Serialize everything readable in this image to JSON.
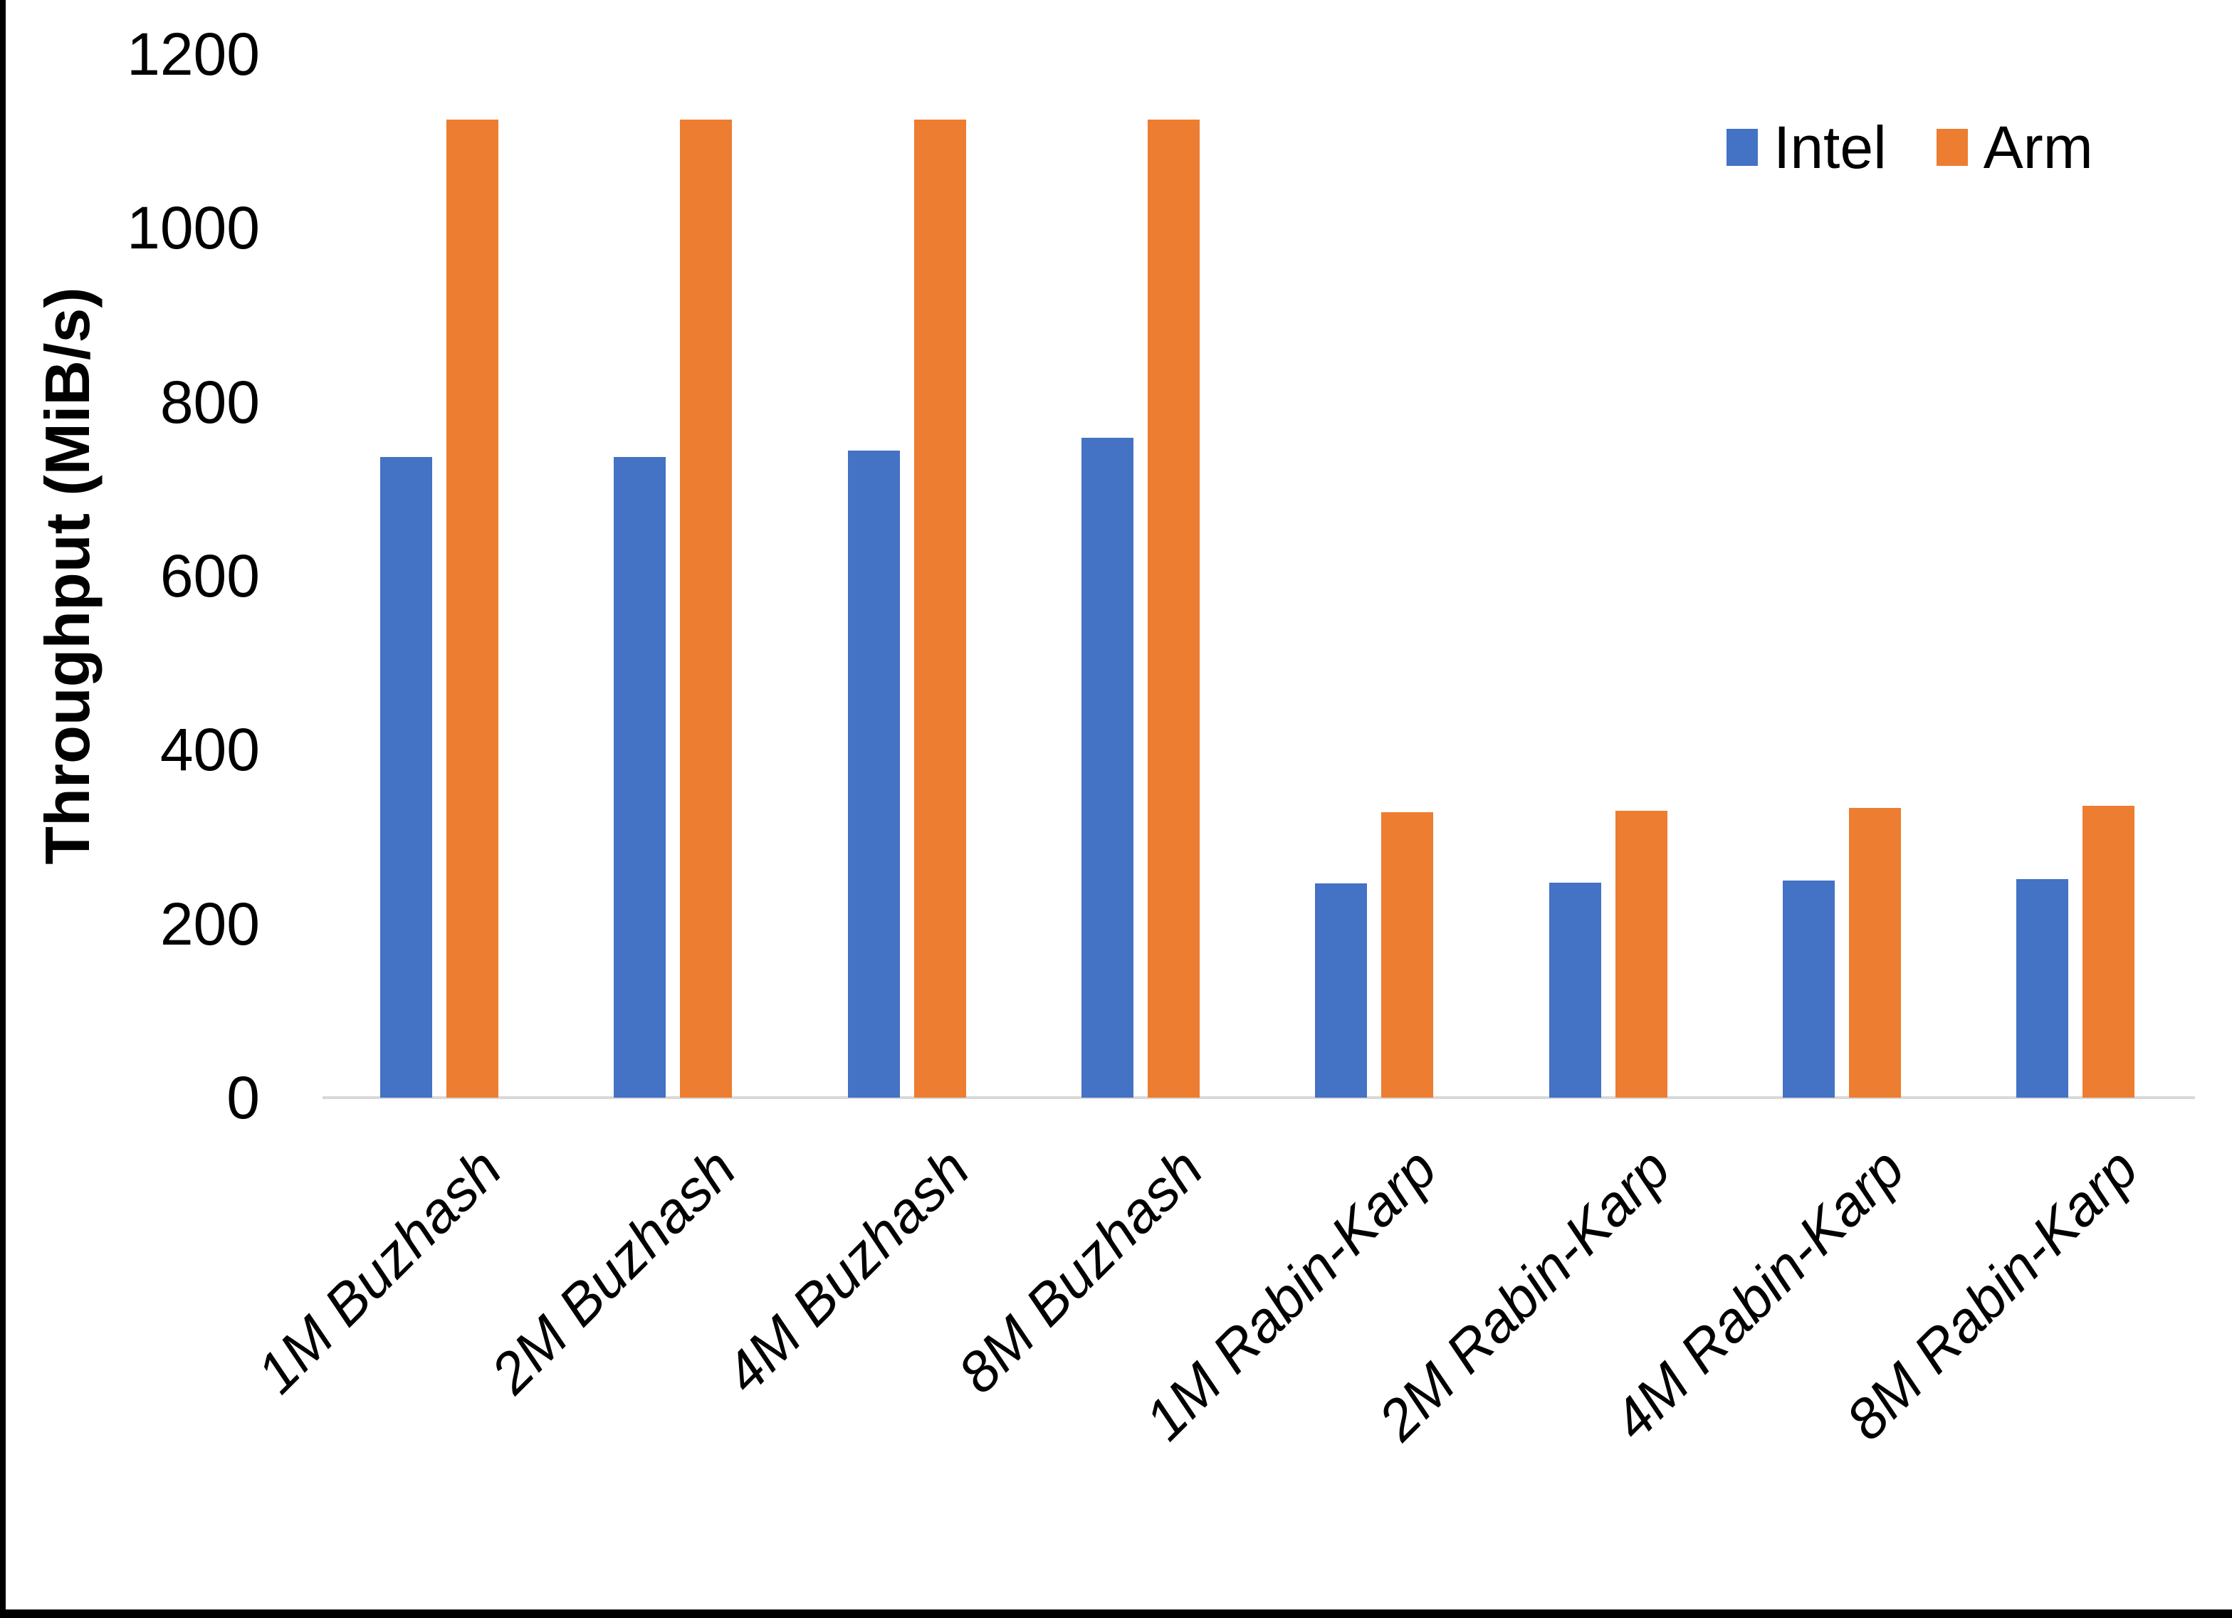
{
  "figure": {
    "background": "#FFFFFF",
    "border_color": "#000000",
    "axis_line_color": "#D9D9D9",
    "text_color": "#000000"
  },
  "legend": {
    "position": "top-right",
    "items": [
      {
        "label": "Intel",
        "color": "#4472C4"
      },
      {
        "label": "Arm",
        "color": "#ED7D31"
      }
    ]
  },
  "chart_data": {
    "type": "bar",
    "title": "",
    "xlabel": "",
    "ylabel": "Throughput (MiB/s)",
    "ylim": [
      0,
      1200
    ],
    "yticks": [
      0,
      200,
      400,
      600,
      800,
      1000,
      1200
    ],
    "grid": false,
    "legend_position": "top-right",
    "categories": [
      "1M Buzhash",
      "2M Buzhash",
      "4M Buzhash",
      "8M Buzhash",
      "1M Rabin-Karp",
      "2M Rabin-Karp",
      "4M Rabin-Karp",
      "8M Rabin-Karp"
    ],
    "series": [
      {
        "name": "Intel",
        "color": "#4472C4",
        "values": [
          737,
          737,
          744,
          759,
          246,
          247,
          250,
          251
        ]
      },
      {
        "name": "Arm",
        "color": "#ED7D31",
        "values": [
          1125,
          1125,
          1125,
          1125,
          328,
          330,
          333,
          336
        ]
      }
    ]
  }
}
